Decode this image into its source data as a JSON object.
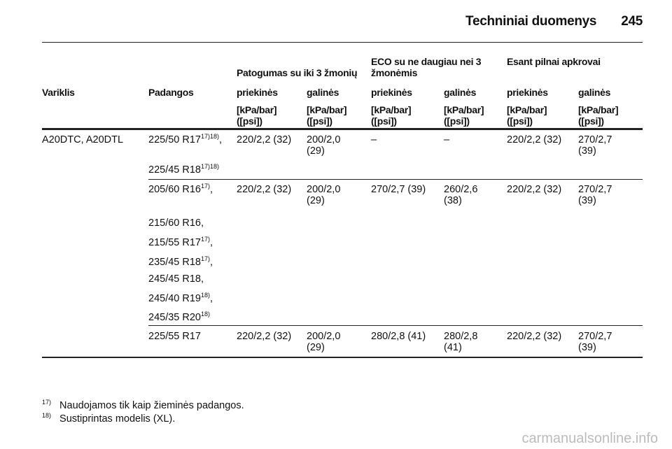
{
  "header": {
    "title": "Techniniai duomenys",
    "page": "245"
  },
  "table": {
    "group_headers": [
      "Patogumas su iki 3 žmonių",
      "ECO su ne daugiau nei 3 žmonėmis",
      "Esant pilnai apkrovai"
    ],
    "columns": [
      "Variklis",
      "Padangos",
      "priekinės",
      "galinės",
      "priekinės",
      "galinės",
      "priekinės",
      "galinės"
    ],
    "units": [
      "[kPa/bar] ([psi])",
      "[kPa/bar] ([psi])",
      "[kPa/bar] ([psi])",
      "[kPa/bar] ([psi])",
      "[kPa/bar] ([psi])",
      "[kPa/bar] ([psi])"
    ],
    "rows": [
      {
        "engine": "A20DTC, A20DTL",
        "tires": [
          {
            "size": "225/50 R17",
            "note": "17)18)",
            "sep": ","
          },
          {
            "size": "225/45 R18",
            "note": "17)18)"
          }
        ],
        "values": [
          "220/2,2 (32)",
          "200/2,0 (29)",
          "–",
          "–",
          "220/2,2 (32)",
          "270/2,7 (39)"
        ]
      },
      {
        "tires": [
          {
            "size": "205/60 R16",
            "note": "17)",
            "sep": ","
          },
          {
            "size": "215/60 R16,"
          },
          {
            "size": "215/55 R17",
            "note": "17)",
            "sep": ","
          },
          {
            "size": "235/45 R18",
            "note": "17)",
            "sep": ","
          },
          {
            "size": "245/45 R18,"
          },
          {
            "size": "245/40 R19",
            "note": "18)",
            "sep": ","
          },
          {
            "size": "245/35 R20",
            "note": "18)"
          }
        ],
        "values": [
          "220/2,2 (32)",
          "200/2,0 (29)",
          "270/2,7 (39)",
          "260/2,6 (38)",
          "220/2,2 (32)",
          "270/2,7 (39)"
        ]
      },
      {
        "tires": [
          {
            "size": "225/55 R17"
          }
        ],
        "values": [
          "220/2,2 (32)",
          "200/2,0 (29)",
          "280/2,8 (41)",
          "280/2,8 (41)",
          "220/2,2 (32)",
          "270/2,7 (39)"
        ]
      }
    ]
  },
  "footnotes": [
    {
      "mark": "17)",
      "text": "Naudojamos tik kaip žieminės padangos."
    },
    {
      "mark": "18)",
      "text": "Sustiprintas modelis (XL)."
    }
  ],
  "watermark": "carmanualsonline.info"
}
